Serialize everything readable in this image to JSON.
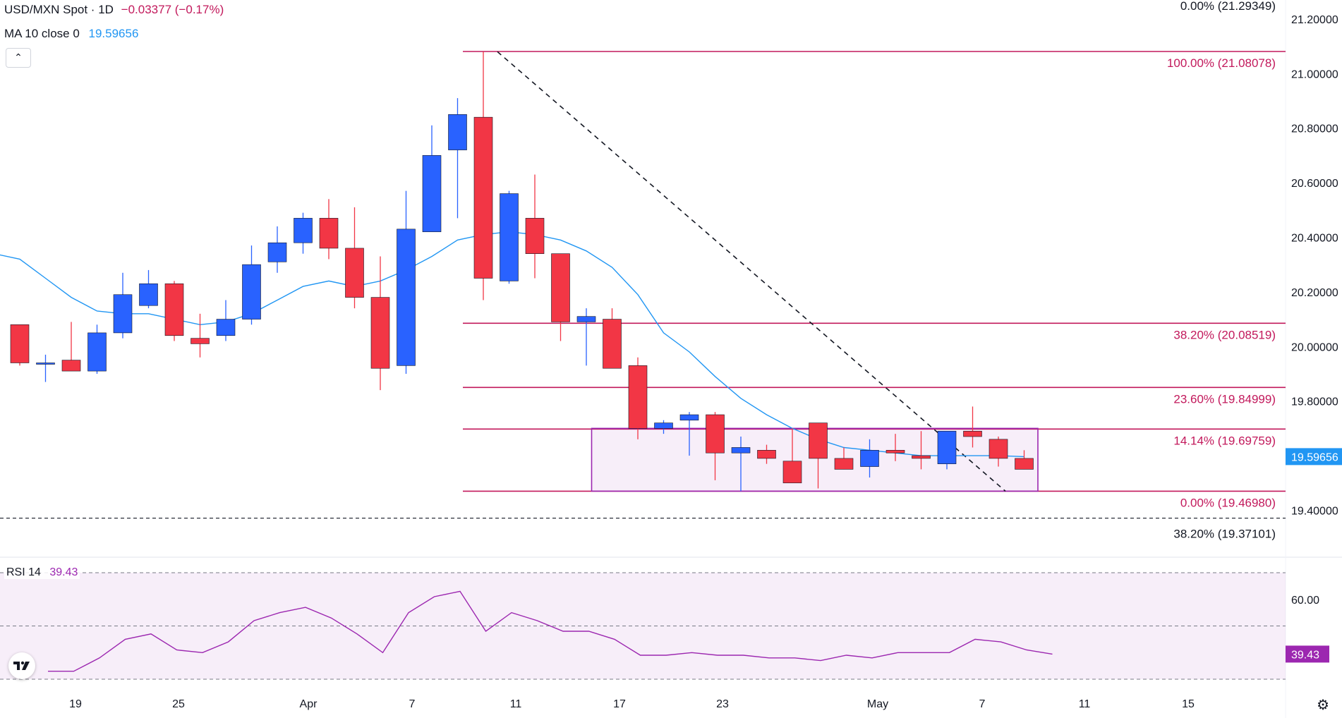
{
  "header": {
    "symbol_line": "USD/MXN Spot · 1D",
    "change": "−0.03377 (−0.17%)",
    "ma_label": "MA 10 close 0",
    "ma_value": "19.59656"
  },
  "rsi_header": {
    "label": "RSI 14",
    "value": "39.43"
  },
  "colors": {
    "up": "#2962ff",
    "down": "#f23645",
    "ma": "#2196f3",
    "fib": "#c2185b",
    "rsi": "#9c27b0",
    "range_box": "#9c27b0"
  },
  "icons": [
    "chevron-up-icon",
    "tradingview-logo-icon",
    "settings-icon"
  ],
  "chart_data": [
    {
      "type": "candlestick",
      "title": "USD/MXN Spot · 1D",
      "ylim": [
        19.3,
        21.3
      ],
      "x_ticks": [
        "19",
        "25",
        "Apr",
        "7",
        "11",
        "17",
        "23",
        "May",
        "7",
        "11",
        "15"
      ],
      "y_ticks": [
        "19.40000",
        "19.60000",
        "19.80000",
        "20.00000",
        "20.20000",
        "20.40000",
        "20.60000",
        "20.80000",
        "21.00000",
        "21.20000"
      ],
      "candles": [
        {
          "o": 20.08,
          "h": 20.08,
          "l": 19.93,
          "c": 19.94
        },
        {
          "o": 19.94,
          "h": 19.97,
          "l": 19.87,
          "c": 19.94
        },
        {
          "o": 19.95,
          "h": 20.09,
          "l": 19.91,
          "c": 19.91
        },
        {
          "o": 19.91,
          "h": 20.08,
          "l": 19.9,
          "c": 20.05
        },
        {
          "o": 20.05,
          "h": 20.27,
          "l": 20.03,
          "c": 20.19
        },
        {
          "o": 20.15,
          "h": 20.28,
          "l": 20.14,
          "c": 20.23
        },
        {
          "o": 20.23,
          "h": 20.24,
          "l": 20.02,
          "c": 20.04
        },
        {
          "o": 20.03,
          "h": 20.12,
          "l": 19.96,
          "c": 20.01
        },
        {
          "o": 20.04,
          "h": 20.17,
          "l": 20.02,
          "c": 20.1
        },
        {
          "o": 20.1,
          "h": 20.37,
          "l": 20.08,
          "c": 20.3
        },
        {
          "o": 20.31,
          "h": 20.44,
          "l": 20.27,
          "c": 20.38
        },
        {
          "o": 20.38,
          "h": 20.49,
          "l": 20.34,
          "c": 20.47
        },
        {
          "o": 20.47,
          "h": 20.54,
          "l": 20.32,
          "c": 20.36
        },
        {
          "o": 20.36,
          "h": 20.51,
          "l": 20.14,
          "c": 20.18
        },
        {
          "o": 20.18,
          "h": 20.33,
          "l": 19.84,
          "c": 19.92
        },
        {
          "o": 19.93,
          "h": 20.57,
          "l": 19.9,
          "c": 20.43
        },
        {
          "o": 20.42,
          "h": 20.81,
          "l": 20.42,
          "c": 20.7
        },
        {
          "o": 20.72,
          "h": 20.91,
          "l": 20.47,
          "c": 20.85
        },
        {
          "o": 20.84,
          "h": 21.08,
          "l": 20.17,
          "c": 20.25
        },
        {
          "o": 20.24,
          "h": 20.57,
          "l": 20.23,
          "c": 20.56
        },
        {
          "o": 20.47,
          "h": 20.63,
          "l": 20.25,
          "c": 20.34
        },
        {
          "o": 20.34,
          "h": 20.34,
          "l": 20.02,
          "c": 20.09
        },
        {
          "o": 20.09,
          "h": 20.14,
          "l": 19.93,
          "c": 20.11
        },
        {
          "o": 20.1,
          "h": 20.14,
          "l": 19.92,
          "c": 19.92
        },
        {
          "o": 19.93,
          "h": 19.96,
          "l": 19.66,
          "c": 19.7
        },
        {
          "o": 19.7,
          "h": 19.73,
          "l": 19.68,
          "c": 19.72
        },
        {
          "o": 19.73,
          "h": 19.76,
          "l": 19.6,
          "c": 19.75
        },
        {
          "o": 19.75,
          "h": 19.76,
          "l": 19.51,
          "c": 19.61
        },
        {
          "o": 19.61,
          "h": 19.67,
          "l": 19.47,
          "c": 19.63
        },
        {
          "o": 19.62,
          "h": 19.64,
          "l": 19.57,
          "c": 19.59
        },
        {
          "o": 19.58,
          "h": 19.7,
          "l": 19.5,
          "c": 19.5
        },
        {
          "o": 19.72,
          "h": 19.72,
          "l": 19.48,
          "c": 19.59
        },
        {
          "o": 19.59,
          "h": 19.63,
          "l": 19.55,
          "c": 19.55
        },
        {
          "o": 19.56,
          "h": 19.66,
          "l": 19.52,
          "c": 19.62
        },
        {
          "o": 19.62,
          "h": 19.68,
          "l": 19.58,
          "c": 19.61
        },
        {
          "o": 19.6,
          "h": 19.69,
          "l": 19.55,
          "c": 19.59
        },
        {
          "o": 19.57,
          "h": 19.69,
          "l": 19.55,
          "c": 19.69
        },
        {
          "o": 19.69,
          "h": 19.78,
          "l": 19.63,
          "c": 19.67
        },
        {
          "o": 19.66,
          "h": 19.67,
          "l": 19.56,
          "c": 19.59
        },
        {
          "o": 19.59,
          "h": 19.62,
          "l": 19.55,
          "c": 19.55
        }
      ],
      "ma10": [
        20.32,
        20.25,
        20.18,
        20.13,
        20.12,
        20.12,
        20.1,
        20.08,
        20.09,
        20.12,
        20.17,
        20.22,
        20.24,
        20.22,
        20.24,
        20.28,
        20.33,
        20.39,
        20.41,
        20.42,
        20.41,
        20.39,
        20.35,
        20.29,
        20.19,
        20.05,
        19.98,
        19.89,
        19.81,
        19.75,
        19.7,
        19.66,
        19.63,
        19.62,
        19.61,
        19.6,
        19.6,
        19.6,
        19.6,
        19.59656
      ],
      "fib_levels": [
        {
          "label": "0.00% (21.29349)",
          "value": 21.29349
        },
        {
          "label": "100.00% (21.08078)",
          "value": 21.08078
        },
        {
          "label": "38.20% (20.08519)",
          "value": 20.08519
        },
        {
          "label": "23.60% (19.84999)",
          "value": 19.84999
        },
        {
          "label": "14.14% (19.69759)",
          "value": 19.69759
        },
        {
          "label": "0.00% (19.46980)",
          "value": 19.4698
        },
        {
          "label": "38.20% (19.37101)",
          "value": 19.37101
        }
      ],
      "trendline": {
        "from": {
          "bar": 18,
          "y": 21.08
        },
        "to": {
          "bar": 38,
          "y": 19.47
        }
      },
      "range_box": {
        "from_bar": 23,
        "to_bar": 40,
        "top": 19.7,
        "bottom": 19.47
      },
      "last_price_label": "19.59656"
    },
    {
      "type": "line",
      "title": "RSI 14",
      "ylim": [
        25,
        70
      ],
      "y_ticks": [
        "60.00"
      ],
      "bands": [
        30,
        50,
        70
      ],
      "values": [
        33,
        33,
        38,
        45,
        47,
        41,
        40,
        44,
        52,
        55,
        57,
        53,
        47,
        40,
        55,
        61,
        63,
        48,
        55,
        52,
        48,
        48,
        45,
        39,
        39,
        40,
        39,
        39,
        38,
        38,
        37,
        39,
        38,
        40,
        40,
        40,
        45,
        44,
        41,
        39.43
      ],
      "last_value_label": "39.43"
    }
  ]
}
